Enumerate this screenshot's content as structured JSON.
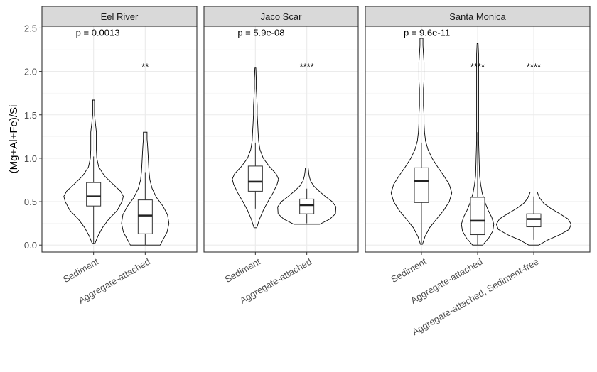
{
  "chart_data": {
    "type": "violin",
    "ylabel": "(Mg+Al+Fe)/Si",
    "ylim": [
      -0.08,
      2.52
    ],
    "yticks": [
      0.0,
      0.5,
      1.0,
      1.5,
      2.0,
      2.5
    ],
    "ytick_labels": [
      "0.0",
      "0.5",
      "1.0",
      "1.5",
      "2.0",
      "2.5"
    ],
    "grid": true,
    "panels": [
      {
        "name": "Eel River",
        "categories": [
          "Sediment",
          "Aggregate-attached"
        ],
        "p_value": "p = 0.0013",
        "signif": [
          "",
          "**"
        ],
        "groups": [
          {
            "category": "Sediment",
            "min": 0.02,
            "q1": 0.45,
            "median": 0.56,
            "q3": 0.72,
            "max": 1.02,
            "violin": [
              [
                0.02,
                0.03
              ],
              [
                0.1,
                0.09
              ],
              [
                0.2,
                0.19
              ],
              [
                0.3,
                0.33
              ],
              [
                0.4,
                0.51
              ],
              [
                0.5,
                0.61
              ],
              [
                0.56,
                0.64
              ],
              [
                0.62,
                0.58
              ],
              [
                0.7,
                0.42
              ],
              [
                0.8,
                0.23
              ],
              [
                0.9,
                0.11
              ],
              [
                1.0,
                0.07
              ],
              [
                1.1,
                0.06
              ],
              [
                1.2,
                0.06
              ],
              [
                1.3,
                0.06
              ],
              [
                1.4,
                0.04
              ],
              [
                1.5,
                0.02
              ],
              [
                1.55,
                0.02
              ],
              [
                1.6,
                0.02
              ],
              [
                1.67,
                0.02
              ]
            ]
          },
          {
            "category": "Aggregate-attached",
            "min": 0.0,
            "q1": 0.13,
            "median": 0.34,
            "q3": 0.52,
            "max": 0.84,
            "violin": [
              [
                0.0,
                0.32
              ],
              [
                0.08,
                0.4
              ],
              [
                0.15,
                0.47
              ],
              [
                0.25,
                0.51
              ],
              [
                0.35,
                0.48
              ],
              [
                0.45,
                0.38
              ],
              [
                0.55,
                0.24
              ],
              [
                0.65,
                0.15
              ],
              [
                0.75,
                0.1
              ],
              [
                0.85,
                0.08
              ],
              [
                0.95,
                0.07
              ],
              [
                1.05,
                0.06
              ],
              [
                1.15,
                0.05
              ],
              [
                1.22,
                0.04
              ],
              [
                1.27,
                0.04
              ],
              [
                1.3,
                0.04
              ]
            ]
          }
        ]
      },
      {
        "name": "Jaco Scar",
        "categories": [
          "Sediment",
          "Aggregate-attached"
        ],
        "p_value": "p = 5.9e-08",
        "signif": [
          "",
          "****"
        ],
        "groups": [
          {
            "category": "Sediment",
            "min": 0.42,
            "q1": 0.62,
            "median": 0.73,
            "q3": 0.91,
            "max": 1.18,
            "violin": [
              [
                0.2,
                0.03
              ],
              [
                0.3,
                0.09
              ],
              [
                0.4,
                0.17
              ],
              [
                0.5,
                0.27
              ],
              [
                0.6,
                0.38
              ],
              [
                0.7,
                0.47
              ],
              [
                0.76,
                0.5
              ],
              [
                0.82,
                0.45
              ],
              [
                0.9,
                0.31
              ],
              [
                1.0,
                0.17
              ],
              [
                1.1,
                0.1
              ],
              [
                1.2,
                0.07
              ],
              [
                1.3,
                0.06
              ],
              [
                1.4,
                0.05
              ],
              [
                1.5,
                0.04
              ],
              [
                1.6,
                0.04
              ],
              [
                1.7,
                0.03
              ],
              [
                1.8,
                0.02
              ],
              [
                1.9,
                0.02
              ],
              [
                2.04,
                0.01
              ]
            ]
          },
          {
            "category": "Aggregate-attached",
            "min": 0.25,
            "q1": 0.36,
            "median": 0.46,
            "q3": 0.53,
            "max": 0.65,
            "violin": [
              [
                0.24,
                0.28
              ],
              [
                0.3,
                0.5
              ],
              [
                0.36,
                0.62
              ],
              [
                0.44,
                0.63
              ],
              [
                0.5,
                0.55
              ],
              [
                0.56,
                0.4
              ],
              [
                0.62,
                0.27
              ],
              [
                0.68,
                0.15
              ],
              [
                0.74,
                0.08
              ],
              [
                0.8,
                0.05
              ],
              [
                0.84,
                0.04
              ],
              [
                0.89,
                0.03
              ]
            ]
          }
        ]
      },
      {
        "name": "Santa Monica",
        "categories": [
          "Sediment",
          "Aggregate-attached",
          "Aggregate-attached, Sediment-free"
        ],
        "p_value": "p = 9.6e-11",
        "signif": [
          "",
          "****",
          "****"
        ],
        "groups": [
          {
            "category": "Sediment",
            "min": 0.02,
            "q1": 0.49,
            "median": 0.74,
            "q3": 0.89,
            "max": 1.18,
            "violin": [
              [
                0.01,
                0.02
              ],
              [
                0.1,
                0.07
              ],
              [
                0.2,
                0.16
              ],
              [
                0.3,
                0.3
              ],
              [
                0.4,
                0.44
              ],
              [
                0.5,
                0.55
              ],
              [
                0.6,
                0.6
              ],
              [
                0.7,
                0.55
              ],
              [
                0.8,
                0.44
              ],
              [
                0.9,
                0.32
              ],
              [
                1.0,
                0.21
              ],
              [
                1.1,
                0.13
              ],
              [
                1.2,
                0.08
              ],
              [
                1.3,
                0.06
              ],
              [
                1.4,
                0.05
              ],
              [
                1.5,
                0.05
              ],
              [
                1.6,
                0.04
              ],
              [
                1.7,
                0.04
              ],
              [
                1.8,
                0.04
              ],
              [
                1.9,
                0.05
              ],
              [
                2.0,
                0.05
              ],
              [
                2.1,
                0.05
              ],
              [
                2.2,
                0.04
              ],
              [
                2.3,
                0.03
              ],
              [
                2.38,
                0.03
              ]
            ]
          },
          {
            "category": "Aggregate-attached",
            "min": 0.0,
            "q1": 0.12,
            "median": 0.28,
            "q3": 0.55,
            "max": 1.3,
            "violin": [
              [
                0.0,
                0.1
              ],
              [
                0.08,
                0.22
              ],
              [
                0.16,
                0.3
              ],
              [
                0.24,
                0.32
              ],
              [
                0.32,
                0.28
              ],
              [
                0.4,
                0.21
              ],
              [
                0.5,
                0.14
              ],
              [
                0.6,
                0.09
              ],
              [
                0.7,
                0.06
              ],
              [
                0.8,
                0.04
              ],
              [
                1.0,
                0.03
              ],
              [
                1.2,
                0.02
              ],
              [
                1.4,
                0.02
              ],
              [
                1.6,
                0.02
              ],
              [
                1.8,
                0.02
              ],
              [
                2.0,
                0.02
              ],
              [
                2.2,
                0.02
              ],
              [
                2.32,
                0.01
              ]
            ]
          },
          {
            "category": "Aggregate-attached, Sediment-free",
            "min": 0.06,
            "q1": 0.21,
            "median": 0.3,
            "q3": 0.36,
            "max": 0.56,
            "violin": [
              [
                0.0,
                0.1
              ],
              [
                0.06,
                0.28
              ],
              [
                0.12,
                0.52
              ],
              [
                0.18,
                0.7
              ],
              [
                0.24,
                0.74
              ],
              [
                0.3,
                0.68
              ],
              [
                0.36,
                0.52
              ],
              [
                0.42,
                0.34
              ],
              [
                0.48,
                0.2
              ],
              [
                0.54,
                0.12
              ],
              [
                0.58,
                0.09
              ],
              [
                0.61,
                0.07
              ]
            ]
          }
        ]
      }
    ]
  }
}
